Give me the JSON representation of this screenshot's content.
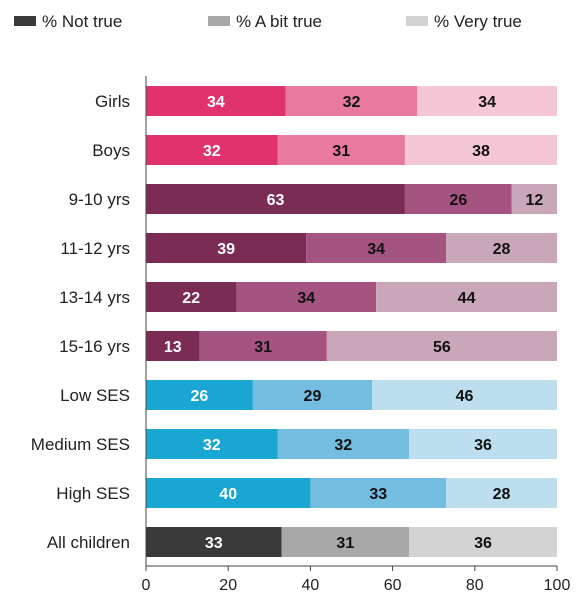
{
  "chart_data": {
    "type": "bar",
    "orientation": "horizontal",
    "stacked": true,
    "title": "",
    "xlabel": "",
    "ylabel": "",
    "xlim": [
      0,
      100
    ],
    "x_ticks": [
      "0",
      "20",
      "40",
      "60",
      "80",
      "100"
    ],
    "grid": false,
    "legend_position": "top",
    "legend": [
      {
        "label": "% Not true",
        "color": "#3a3a3a"
      },
      {
        "label": "% A bit true",
        "color": "#a8a8a8"
      },
      {
        "label": "% Very true",
        "color": "#d3d3d3"
      }
    ],
    "categories": [
      "Girls",
      "Boys",
      "9-10 yrs",
      "11-12 yrs",
      "13-14 yrs",
      "15-16 yrs",
      "Low SES",
      "Medium SES",
      "High SES",
      "All children"
    ],
    "series": [
      {
        "name": "% Not true",
        "values": [
          34,
          32,
          63,
          39,
          22,
          13,
          26,
          32,
          40,
          33
        ]
      },
      {
        "name": "% A bit true",
        "values": [
          32,
          31,
          26,
          34,
          34,
          31,
          29,
          32,
          33,
          31
        ]
      },
      {
        "name": "% Very true",
        "values": [
          34,
          38,
          12,
          28,
          44,
          56,
          46,
          36,
          28,
          36
        ]
      }
    ],
    "row_colors": [
      [
        "#e0336e",
        "#e8799f",
        "#f4c6d6"
      ],
      [
        "#e0336e",
        "#e8799f",
        "#f4c6d6"
      ],
      [
        "#7b2c55",
        "#a55381",
        "#c9a7b9"
      ],
      [
        "#7b2c55",
        "#a55381",
        "#c9a7b9"
      ],
      [
        "#7b2c55",
        "#a55381",
        "#c9a7b9"
      ],
      [
        "#7b2c55",
        "#a55381",
        "#c9a7b9"
      ],
      [
        "#1aa6d2",
        "#72bde0",
        "#bcdeee"
      ],
      [
        "#1aa6d2",
        "#72bde0",
        "#bcdeee"
      ],
      [
        "#1aa6d2",
        "#72bde0",
        "#bcdeee"
      ],
      [
        "#3a3a3a",
        "#a8a8a8",
        "#d3d3d3"
      ]
    ],
    "label_colors": [
      [
        "#ffffff",
        "#111111",
        "#111111"
      ],
      [
        "#ffffff",
        "#111111",
        "#111111"
      ],
      [
        "#ffffff",
        "#111111",
        "#111111"
      ],
      [
        "#ffffff",
        "#111111",
        "#111111"
      ],
      [
        "#ffffff",
        "#111111",
        "#111111"
      ],
      [
        "#ffffff",
        "#111111",
        "#111111"
      ],
      [
        "#ffffff",
        "#111111",
        "#111111"
      ],
      [
        "#ffffff",
        "#111111",
        "#111111"
      ],
      [
        "#ffffff",
        "#111111",
        "#111111"
      ],
      [
        "#ffffff",
        "#111111",
        "#111111"
      ]
    ]
  }
}
